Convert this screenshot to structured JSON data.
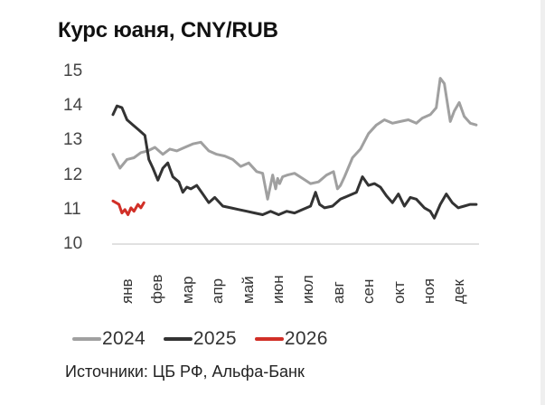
{
  "chart_data": {
    "type": "line",
    "title": "Курс юаня, CNY/RUB",
    "xlabel": "",
    "ylabel": "",
    "ylim": [
      10,
      15
    ],
    "yticks": [
      10,
      11,
      12,
      13,
      14,
      15
    ],
    "grid": false,
    "legend_position": "bottom",
    "categories": [
      "янв",
      "фев",
      "мар",
      "апр",
      "май",
      "июн",
      "июл",
      "авг",
      "сен",
      "окт",
      "ноя",
      "дек"
    ],
    "x_unit": "day of year (0-365)",
    "series": [
      {
        "name": "2024",
        "color": "#a0a0a0",
        "x": [
          0,
          7,
          14,
          21,
          28,
          35,
          42,
          50,
          57,
          64,
          72,
          80,
          88,
          96,
          104,
          112,
          120,
          128,
          136,
          144,
          150,
          155,
          160,
          163,
          165,
          167,
          170,
          175,
          182,
          190,
          198,
          206,
          214,
          221,
          225,
          228,
          232,
          240,
          248,
          256,
          264,
          272,
          280,
          288,
          296,
          304,
          310,
          318,
          324,
          328,
          332,
          338,
          342,
          347,
          352,
          358,
          364
        ],
        "values": [
          12.6,
          12.2,
          12.45,
          12.5,
          12.65,
          12.7,
          12.8,
          12.6,
          12.75,
          12.7,
          12.8,
          12.9,
          12.95,
          12.7,
          12.6,
          12.55,
          12.45,
          12.25,
          12.35,
          12.1,
          12.05,
          11.3,
          12.0,
          11.6,
          11.9,
          11.75,
          11.95,
          12.0,
          12.05,
          11.9,
          11.75,
          11.8,
          12.0,
          12.1,
          11.6,
          11.7,
          11.95,
          12.5,
          12.75,
          13.2,
          13.45,
          13.6,
          13.5,
          13.55,
          13.6,
          13.5,
          13.65,
          13.75,
          13.95,
          14.8,
          14.65,
          13.55,
          13.85,
          14.1,
          13.7,
          13.5,
          13.45
        ]
      },
      {
        "name": "2025",
        "color": "#333333",
        "x": [
          0,
          4,
          9,
          14,
          20,
          26,
          32,
          36,
          40,
          45,
          50,
          55,
          60,
          66,
          70,
          74,
          78,
          84,
          90,
          96,
          102,
          110,
          118,
          126,
          134,
          142,
          150,
          158,
          166,
          174,
          182,
          190,
          198,
          203,
          207,
          212,
          220,
          228,
          236,
          244,
          250,
          256,
          262,
          268,
          274,
          280,
          286,
          292,
          298,
          304,
          312,
          318,
          322,
          328,
          334,
          340,
          346,
          352,
          358,
          364
        ],
        "values": [
          13.75,
          14.0,
          13.95,
          13.6,
          13.45,
          13.3,
          13.15,
          12.45,
          12.2,
          11.85,
          12.2,
          12.35,
          11.95,
          11.8,
          11.5,
          11.65,
          11.6,
          11.7,
          11.45,
          11.2,
          11.35,
          11.1,
          11.05,
          11.0,
          10.95,
          10.9,
          10.85,
          10.95,
          10.85,
          10.95,
          10.9,
          11.0,
          11.1,
          11.5,
          11.15,
          11.05,
          11.1,
          11.3,
          11.4,
          11.5,
          11.95,
          11.7,
          11.75,
          11.65,
          11.4,
          11.2,
          11.45,
          11.1,
          11.35,
          11.3,
          11.05,
          10.95,
          10.75,
          11.15,
          11.45,
          11.2,
          11.05,
          11.1,
          11.15,
          11.15
        ]
      },
      {
        "name": "2026",
        "color": "#d12f27",
        "x": [
          0,
          3,
          6,
          9,
          12,
          15,
          18,
          21,
          25,
          28,
          31
        ],
        "values": [
          11.25,
          11.2,
          11.15,
          10.9,
          11.0,
          10.85,
          11.05,
          10.95,
          11.15,
          11.05,
          11.2
        ]
      }
    ]
  },
  "title": "Курс юаня, CNY/RUB",
  "y_axis": {
    "ticks": [
      "15",
      "14",
      "13",
      "12",
      "11",
      "10"
    ]
  },
  "x_axis": {
    "ticks": [
      "янв",
      "фев",
      "мар",
      "апр",
      "май",
      "июн",
      "июл",
      "авг",
      "сен",
      "окт",
      "ноя",
      "дек"
    ]
  },
  "legend": [
    {
      "label": "2024",
      "color": "#a0a0a0"
    },
    {
      "label": "2025",
      "color": "#333333"
    },
    {
      "label": "2026",
      "color": "#d12f27"
    }
  ],
  "source": "Источники: ЦБ РФ, Альфа-Банк"
}
